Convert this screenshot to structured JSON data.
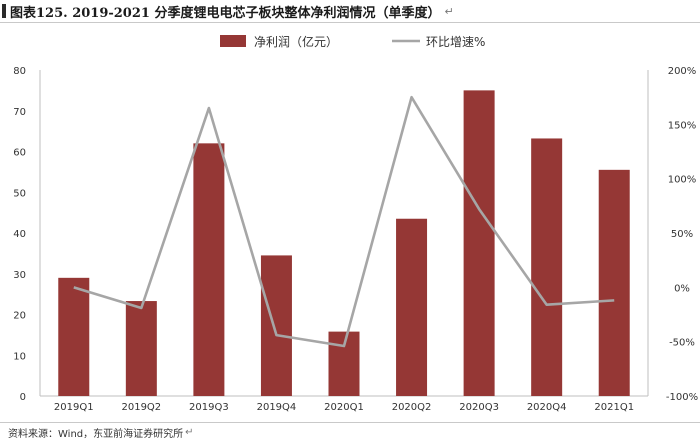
{
  "header": {
    "title": "图表125. 2019-2021 分季度锂电电芯子板块整体净利润情况（单季度）",
    "return_mark": "↵"
  },
  "footer": {
    "source": "资料来源：Wind，东亚前海证券研究所",
    "return_mark": "↵"
  },
  "colors": {
    "bar": "#953735",
    "line": "#a6a6a6",
    "axis": "#bfbfbf",
    "text": "#333333"
  },
  "chart_data": {
    "type": "bar",
    "categories": [
      "2019Q1",
      "2019Q2",
      "2019Q3",
      "2019Q4",
      "2020Q1",
      "2020Q2",
      "2020Q3",
      "2020Q4",
      "2021Q1"
    ],
    "series": [
      {
        "name": "净利润（亿元）",
        "type": "bar",
        "axis": "left",
        "values": [
          29,
          23.3,
          62,
          34.5,
          15.8,
          43.5,
          75,
          63.2,
          55.5
        ]
      },
      {
        "name": "环比增速%",
        "type": "line",
        "axis": "right",
        "values": [
          0,
          -19,
          165,
          -44,
          -54,
          175,
          72,
          -16,
          -12
        ]
      }
    ],
    "left_axis": {
      "min": 0,
      "max": 80,
      "ticks": [
        "0",
        "10",
        "20",
        "30",
        "40",
        "50",
        "60",
        "70",
        "80"
      ]
    },
    "right_axis": {
      "min": -100,
      "max": 200,
      "ticks": [
        "-100%",
        "-50%",
        "0%",
        "50%",
        "100%",
        "150%",
        "200%"
      ]
    },
    "legend_position": "top-center",
    "grid": false
  }
}
